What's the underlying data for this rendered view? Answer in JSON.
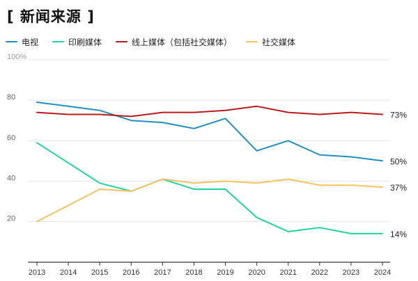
{
  "chart_data": {
    "type": "line",
    "title": "[ 新闻来源 ]",
    "xlabel": "",
    "ylabel": "",
    "x": [
      2013,
      2014,
      2015,
      2016,
      2017,
      2018,
      2019,
      2020,
      2021,
      2022,
      2023,
      2024
    ],
    "ylim": [
      0,
      100
    ],
    "yticks": [
      {
        "value": 20,
        "label": "20"
      },
      {
        "value": 40,
        "label": "40"
      },
      {
        "value": 60,
        "label": "60"
      },
      {
        "value": 80,
        "label": "80"
      },
      {
        "value": 100,
        "label": "100%"
      }
    ],
    "grid": true,
    "legend_position": "top-left",
    "series": [
      {
        "name": "电视",
        "color": "#1e90bf",
        "values": [
          79,
          77,
          75,
          70,
          69,
          66,
          71,
          55,
          60,
          53,
          52,
          50
        ],
        "end_label": "50%"
      },
      {
        "name": "印刷媒体",
        "color": "#1fd69a",
        "values": [
          59,
          49,
          39,
          35,
          41,
          36,
          36,
          22,
          15,
          17,
          14,
          14
        ],
        "end_label": "14%"
      },
      {
        "name": "线上媒体（包括社交媒体）",
        "color": "#b71c1c",
        "values": [
          74,
          73,
          73,
          72,
          74,
          74,
          75,
          77,
          74,
          73,
          74,
          73
        ],
        "end_label": "73%"
      },
      {
        "name": "社交媒体",
        "color": "#f7c35f",
        "values": [
          20,
          28,
          36,
          35,
          41,
          39,
          40,
          39,
          41,
          38,
          38,
          37
        ],
        "end_label": "37%"
      }
    ]
  }
}
